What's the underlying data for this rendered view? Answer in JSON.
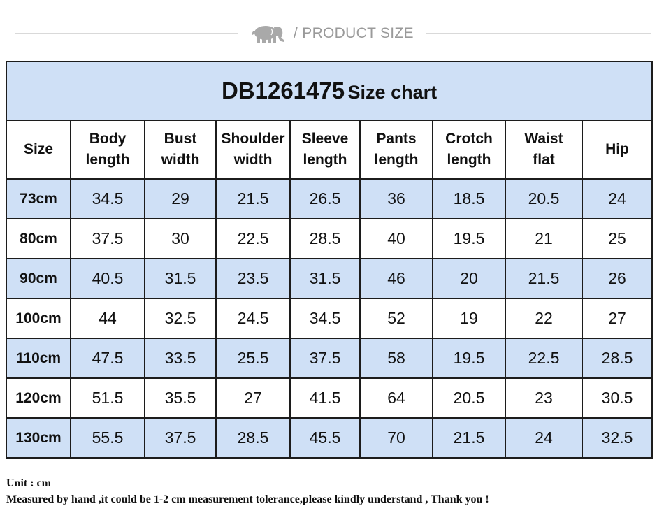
{
  "header": {
    "title": "/ PRODUCT SIZE",
    "logo_icon": "elephant-icon",
    "logo_color": "#a9a9a9"
  },
  "chart": {
    "code": "DB1261475",
    "suffix": "Size chart",
    "columns": [
      "Size",
      "Body length",
      "Bust width",
      "Shoulder width",
      "Sleeve length",
      "Pants length",
      "Crotch length",
      "Waist flat",
      "Hip"
    ],
    "column_lines": [
      [
        "Size"
      ],
      [
        "Body",
        "length"
      ],
      [
        "Bust",
        "width"
      ],
      [
        "Shoulder",
        "width"
      ],
      [
        "Sleeve",
        "length"
      ],
      [
        "Pants",
        "length"
      ],
      [
        "Crotch",
        "length"
      ],
      [
        "Waist",
        "flat"
      ],
      [
        "Hip"
      ]
    ],
    "rows": [
      [
        "73cm",
        "34.5",
        "29",
        "21.5",
        "26.5",
        "36",
        "18.5",
        "20.5",
        "24"
      ],
      [
        "80cm",
        "37.5",
        "30",
        "22.5",
        "28.5",
        "40",
        "19.5",
        "21",
        "25"
      ],
      [
        "90cm",
        "40.5",
        "31.5",
        "23.5",
        "31.5",
        "46",
        "20",
        "21.5",
        "26"
      ],
      [
        "100cm",
        "44",
        "32.5",
        "24.5",
        "34.5",
        "52",
        "19",
        "22",
        "27"
      ],
      [
        "110cm",
        "47.5",
        "33.5",
        "25.5",
        "37.5",
        "58",
        "19.5",
        "22.5",
        "28.5"
      ],
      [
        "120cm",
        "51.5",
        "35.5",
        "27",
        "41.5",
        "64",
        "20.5",
        "23",
        "30.5"
      ],
      [
        "130cm",
        "55.5",
        "37.5",
        "28.5",
        "45.5",
        "70",
        "21.5",
        "24",
        "32.5"
      ]
    ],
    "shade_color": "#cfe0f6"
  },
  "notes": {
    "unit": "Unit : cm",
    "tolerance": "Measured by hand ,it could be 1-2 cm measurement tolerance,please kindly understand , Thank you !"
  }
}
